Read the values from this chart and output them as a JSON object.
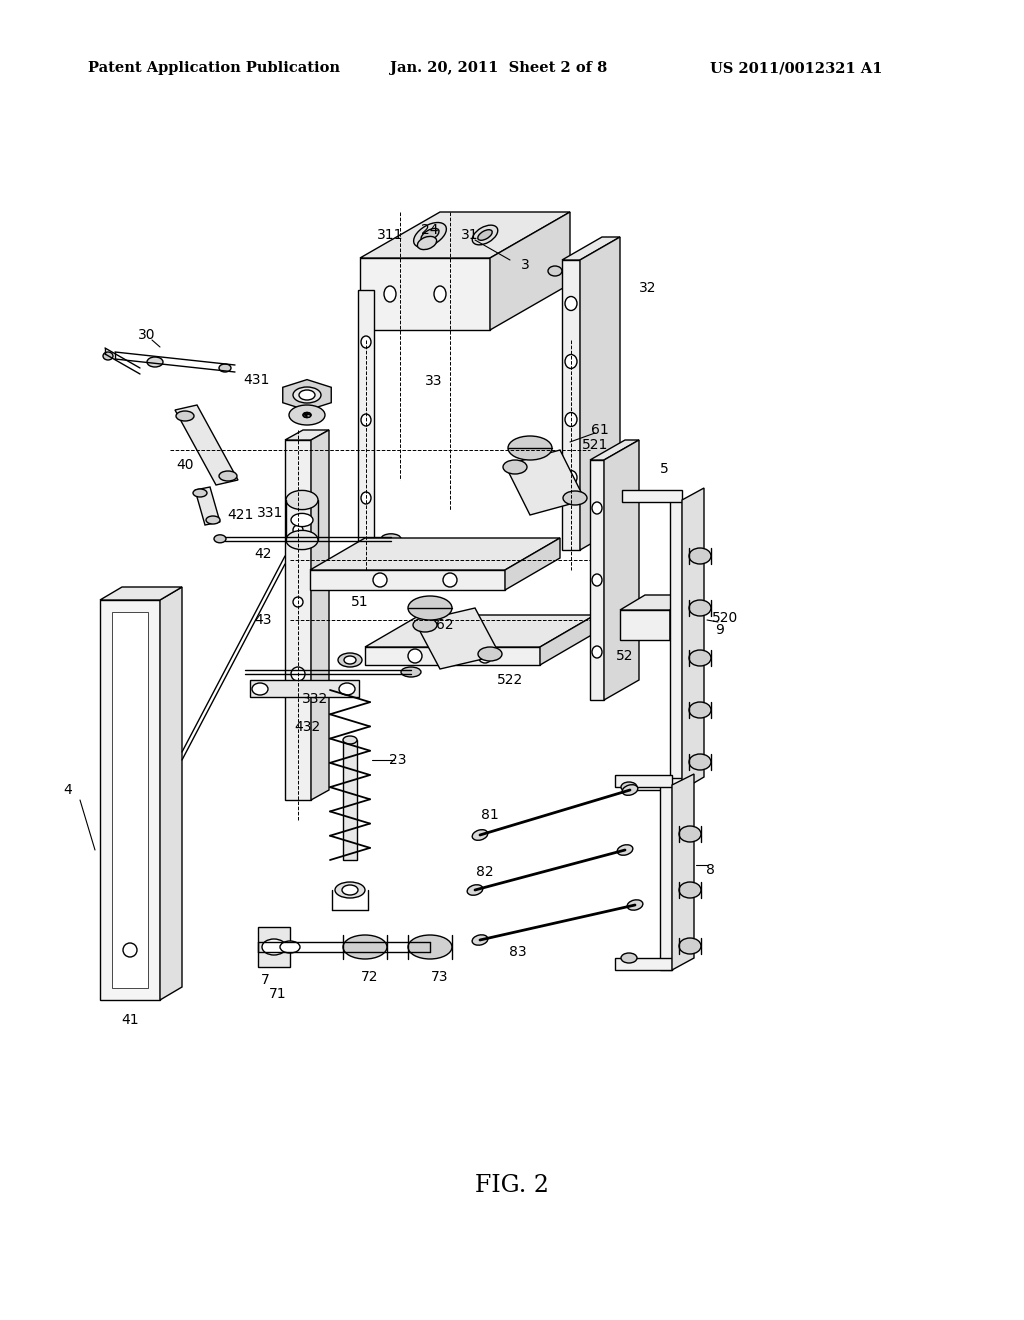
{
  "bg_color": "#ffffff",
  "header_left": "Patent Application Publication",
  "header_center": "Jan. 20, 2011  Sheet 2 of 8",
  "header_right": "US 2011/0012321 A1",
  "caption": "FIG. 2",
  "header_fontsize": 10.5,
  "caption_fontsize": 17,
  "line_color": "#000000",
  "line_width": 1.0,
  "label_fontsize": 10
}
